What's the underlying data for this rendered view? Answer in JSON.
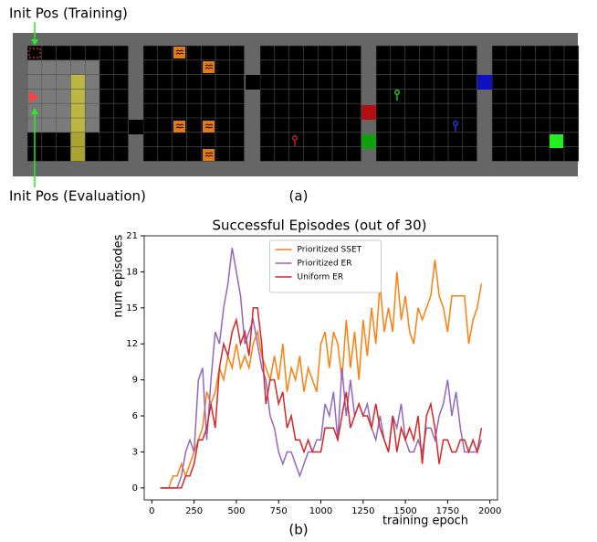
{
  "annotations": {
    "init_training": "Init Pos (Training)",
    "init_evaluation": "Init Pos (Evaluation)",
    "panel_a": "(a)",
    "panel_b": "(b)"
  },
  "chart_data": {
    "type": "line",
    "title": "Successful Episodes (out of 30)",
    "xlabel": "training epoch",
    "ylabel": "num episodes",
    "x": [
      50,
      75,
      100,
      125,
      150,
      175,
      200,
      225,
      250,
      275,
      300,
      325,
      350,
      375,
      400,
      425,
      450,
      475,
      500,
      525,
      550,
      575,
      600,
      625,
      650,
      675,
      700,
      725,
      750,
      775,
      800,
      825,
      850,
      875,
      900,
      925,
      950,
      975,
      1000,
      1025,
      1050,
      1075,
      1100,
      1125,
      1150,
      1175,
      1200,
      1225,
      1250,
      1275,
      1300,
      1325,
      1350,
      1375,
      1400,
      1425,
      1450,
      1475,
      1500,
      1525,
      1550,
      1575,
      1600,
      1625,
      1650,
      1675,
      1700,
      1725,
      1750,
      1775,
      1800,
      1825,
      1850,
      1875,
      1900,
      1925,
      1950
    ],
    "series": [
      {
        "name": "Prioritized SSET",
        "color": "#ff7f0e",
        "values": [
          0,
          0,
          0,
          1,
          1,
          2,
          1,
          2,
          3,
          4,
          5,
          8,
          7,
          8,
          10,
          9,
          11,
          10,
          12,
          10,
          11,
          10,
          12,
          13,
          11,
          10,
          9,
          11,
          9,
          12,
          8,
          10,
          9,
          11,
          8,
          10,
          9,
          8,
          12,
          13,
          10,
          13,
          12,
          9,
          14,
          10,
          13,
          9,
          14,
          11,
          15,
          12,
          17,
          13,
          15,
          13,
          18,
          14,
          16,
          13,
          12,
          15,
          14,
          15,
          16,
          19,
          16,
          15,
          13,
          16,
          16,
          16,
          16,
          12,
          14,
          15,
          17
        ]
      },
      {
        "name": "Prioritized ER",
        "color": "#9467bd",
        "values": [
          0,
          0,
          0,
          0,
          0,
          1,
          3,
          4,
          3,
          9,
          10,
          4,
          9,
          13,
          12,
          15,
          17,
          20,
          18,
          16,
          12,
          13,
          14,
          12,
          10,
          9,
          6,
          5,
          3,
          2,
          3,
          3,
          2,
          1,
          2,
          3,
          3,
          4,
          4,
          7,
          6,
          8,
          4,
          10,
          6,
          9,
          6,
          7,
          6,
          7,
          5,
          4,
          6,
          4,
          3,
          6,
          5,
          7,
          4,
          3,
          3,
          4,
          3,
          5,
          5,
          4,
          6,
          7,
          9,
          6,
          8,
          5,
          3,
          3,
          3,
          3,
          4
        ]
      },
      {
        "name": "Uniform ER",
        "color": "#d62728",
        "values": [
          0,
          0,
          0,
          0,
          0,
          0,
          1,
          1,
          2,
          4,
          4,
          5,
          7,
          5,
          10,
          12,
          11,
          13,
          14,
          12,
          13,
          11,
          15,
          15,
          12,
          7,
          9,
          9,
          7,
          8,
          5,
          6,
          4,
          4,
          3,
          4,
          3,
          3,
          3,
          5,
          5,
          5,
          4,
          6,
          8,
          5,
          6,
          7,
          6,
          6,
          5,
          7,
          5,
          4,
          3,
          6,
          3,
          5,
          4,
          5,
          4,
          6,
          2,
          6,
          7,
          5,
          2,
          4,
          4,
          3,
          3,
          4,
          4,
          3,
          4,
          3,
          5
        ]
      }
    ],
    "xlim": [
      -45,
      2045
    ],
    "ylim": [
      -1,
      21
    ],
    "xticks": [
      0,
      250,
      500,
      750,
      1000,
      1250,
      1500,
      1750,
      2000
    ],
    "yticks": [
      0,
      3,
      6,
      9,
      12,
      15,
      18,
      21
    ],
    "legend": "upper center"
  }
}
